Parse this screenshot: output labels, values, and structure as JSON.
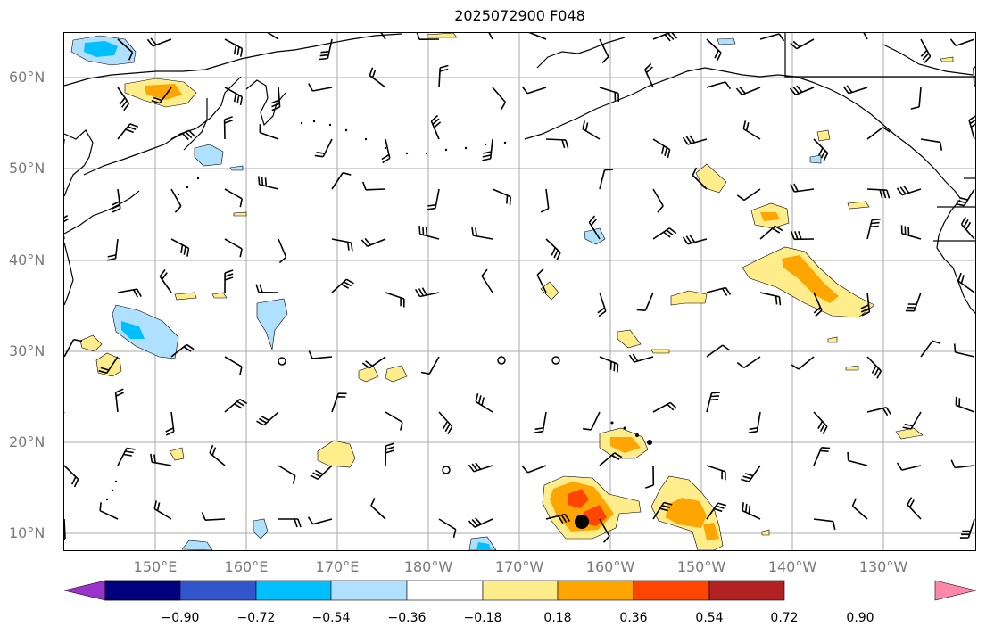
{
  "title": "2025072900 F048",
  "lat_labels": [
    "60°N",
    "50°N",
    "40°N",
    "30°N",
    "20°N",
    "10°N"
  ],
  "lon_labels": [
    "150°E",
    "160°E",
    "170°E",
    "180°W",
    "170°W",
    "160°W",
    "150°W",
    "140°W",
    "130°W"
  ],
  "colorbar": {
    "ticks": [
      "−0.90",
      "−0.72",
      "−0.54",
      "−0.36",
      "−0.18",
      "0.18",
      "0.36",
      "0.54",
      "0.72",
      "0.90"
    ],
    "colors": [
      "#9933cc",
      "#000080",
      "#3355cc",
      "#00bfff",
      "#b0e0ff",
      "#ffffff",
      "#ffec8b",
      "#ffa500",
      "#ff4500",
      "#b22222",
      "#ff88aa"
    ]
  }
}
